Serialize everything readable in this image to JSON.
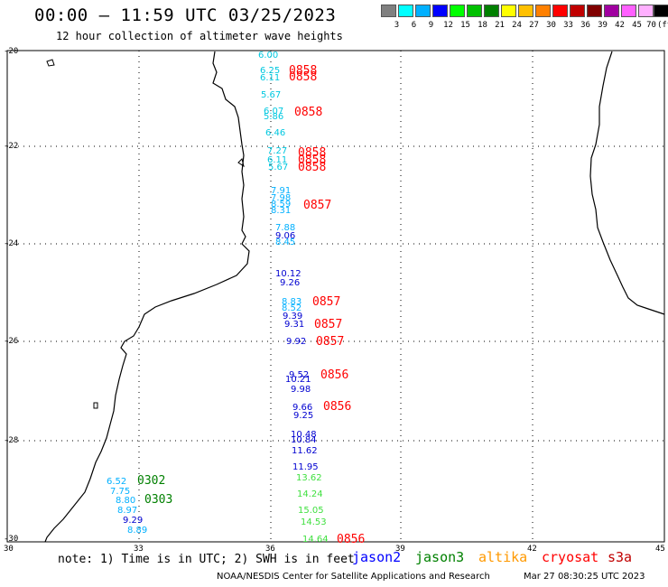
{
  "header": {
    "title": "00:00 – 11:59 UTC 03/25/2023",
    "subtitle": "12 hour collection of altimeter wave heights"
  },
  "color_scale": {
    "labels": [
      "3",
      "6",
      "9",
      "12",
      "15",
      "18",
      "21",
      "24",
      "27",
      "30",
      "33",
      "36",
      "39",
      "42",
      "45",
      "70",
      "(ft)"
    ],
    "colors": [
      "#808080",
      "#00ffff",
      "#00b0ff",
      "#0000ff",
      "#00ff00",
      "#00c000",
      "#008000",
      "#ffff00",
      "#ffc000",
      "#ff8000",
      "#ff0000",
      "#c00000",
      "#800000",
      "#a000a0",
      "#ff60ff",
      "#ffb0ff",
      "#000000"
    ]
  },
  "axes": {
    "lat_labels": [
      "-20",
      "-22",
      "-24",
      "-26",
      "-28",
      "-30"
    ],
    "lon_labels": [
      "30",
      "33",
      "36",
      "39",
      "42",
      "45"
    ]
  },
  "swh_labels": [
    {
      "v": "6.00",
      "c": "#00c8e0"
    },
    {
      "v": "6.25",
      "c": "#00c8e0"
    },
    {
      "v": "6.11",
      "c": "#00c8e0"
    },
    {
      "v": "5.67",
      "c": "#00c8e0"
    },
    {
      "v": "6.07",
      "c": "#00c8e0"
    },
    {
      "v": "5.86",
      "c": "#00c8e0"
    },
    {
      "v": "6.46",
      "c": "#00c8e0"
    },
    {
      "v": "7.27",
      "c": "#00c8e0"
    },
    {
      "v": "6.11",
      "c": "#00c8e0"
    },
    {
      "v": "5.67",
      "c": "#00c8e0"
    },
    {
      "v": "7.91",
      "c": "#00b0ff"
    },
    {
      "v": "7.98",
      "c": "#00b0ff"
    },
    {
      "v": "8.59",
      "c": "#00b0ff"
    },
    {
      "v": "8.31",
      "c": "#00b0ff"
    },
    {
      "v": "7.88",
      "c": "#00b0ff"
    },
    {
      "v": "9.06",
      "c": "#0000d0"
    },
    {
      "v": "8.45",
      "c": "#00b0ff"
    },
    {
      "v": "10.12",
      "c": "#0000d0"
    },
    {
      "v": "9.26",
      "c": "#0000d0"
    },
    {
      "v": "8.83",
      "c": "#00b0ff"
    },
    {
      "v": "8.52",
      "c": "#00b0ff"
    },
    {
      "v": "9.39",
      "c": "#0000d0"
    },
    {
      "v": "9.31",
      "c": "#0000d0"
    },
    {
      "v": "9.92",
      "c": "#0000d0"
    },
    {
      "v": "9.52",
      "c": "#0000d0"
    },
    {
      "v": "10.21",
      "c": "#0000d0"
    },
    {
      "v": "9.98",
      "c": "#0000d0"
    },
    {
      "v": "9.66",
      "c": "#0000d0"
    },
    {
      "v": "9.25",
      "c": "#0000d0"
    },
    {
      "v": "10.48",
      "c": "#0000d0"
    },
    {
      "v": "10.84",
      "c": "#0000d0"
    },
    {
      "v": "11.62",
      "c": "#0000d0"
    },
    {
      "v": "11.95",
      "c": "#0000d0"
    },
    {
      "v": "13.62",
      "c": "#40e040"
    },
    {
      "v": "14.24",
      "c": "#40e040"
    },
    {
      "v": "15.05",
      "c": "#40e040"
    },
    {
      "v": "14.53",
      "c": "#40e040"
    },
    {
      "v": "14.64",
      "c": "#40e040"
    },
    {
      "v": "6.52",
      "c": "#00b0ff"
    },
    {
      "v": "7.75",
      "c": "#00b0ff"
    },
    {
      "v": "8.80",
      "c": "#00b0ff"
    },
    {
      "v": "8.97",
      "c": "#00b0ff"
    },
    {
      "v": "9.29",
      "c": "#0000d0"
    },
    {
      "v": "8.89",
      "c": "#00b0ff"
    }
  ],
  "time_labels": [
    {
      "t": "0858",
      "c": "#ff0000"
    },
    {
      "t": "0858",
      "c": "#ff0000"
    },
    {
      "t": "0858",
      "c": "#ff0000"
    },
    {
      "t": "0858",
      "c": "#ff0000"
    },
    {
      "t": "0858",
      "c": "#ff0000"
    },
    {
      "t": "0858",
      "c": "#ff0000"
    },
    {
      "t": "0857",
      "c": "#ff0000"
    },
    {
      "t": "0857",
      "c": "#ff0000"
    },
    {
      "t": "0857",
      "c": "#ff0000"
    },
    {
      "t": "0857",
      "c": "#ff0000"
    },
    {
      "t": "0856",
      "c": "#ff0000"
    },
    {
      "t": "0856",
      "c": "#ff0000"
    },
    {
      "t": "0856",
      "c": "#ff0000"
    },
    {
      "t": "0302",
      "c": "#008000"
    },
    {
      "t": "0303",
      "c": "#008000"
    }
  ],
  "footer": {
    "note": "note: 1) Time is in UTC; 2) SWH is in feet",
    "satellites": [
      {
        "name": "jason2",
        "color": "#0000ff"
      },
      {
        "name": "jason3",
        "color": "#008000"
      },
      {
        "name": "altika",
        "color": "#ff9900"
      },
      {
        "name": "cryosat",
        "color": "#ff0000"
      },
      {
        "name": "s3a",
        "color": "#c00000"
      }
    ],
    "credit": "NOAA/NESDIS Center for Satellite Applications and Research",
    "timestamp": "Mar 27 08:30:25 UTC 2023"
  }
}
